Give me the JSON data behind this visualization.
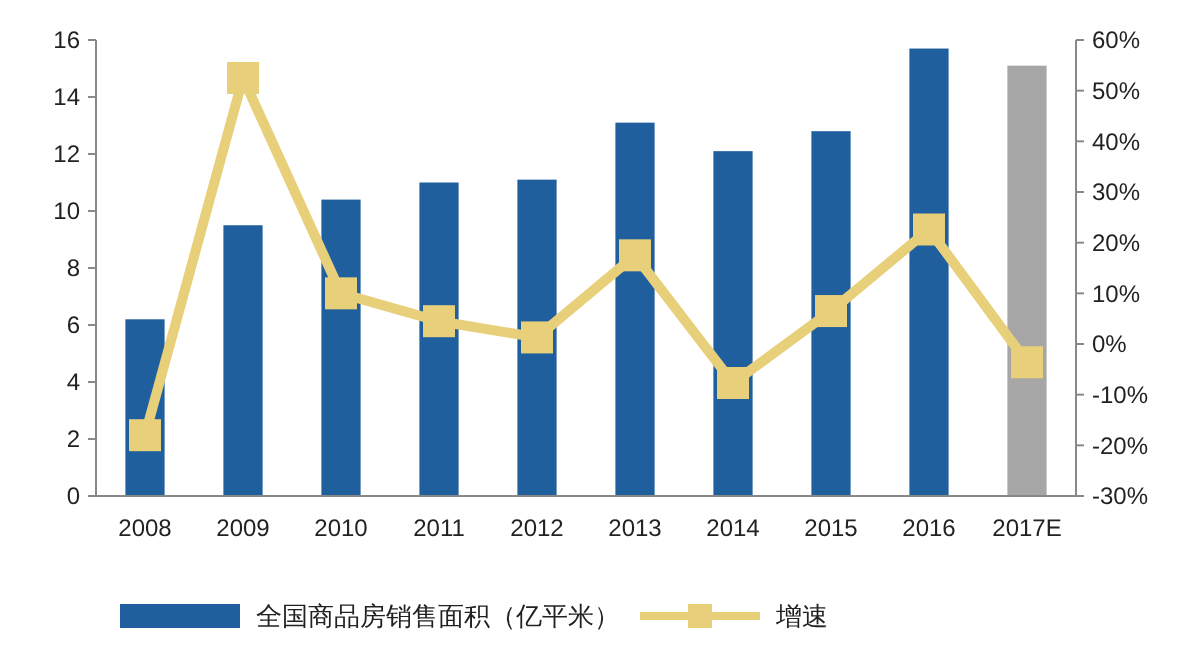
{
  "chart_data": {
    "type": "bar",
    "categories": [
      "2008",
      "2009",
      "2010",
      "2011",
      "2012",
      "2013",
      "2014",
      "2015",
      "2016",
      "2017E"
    ],
    "series": [
      {
        "name": "全国商品房销售面积（亿平米）",
        "color": "#1f5f9e",
        "colors": [
          "#1f5f9e",
          "#1f5f9e",
          "#1f5f9e",
          "#1f5f9e",
          "#1f5f9e",
          "#1f5f9e",
          "#1f5f9e",
          "#1f5f9e",
          "#1f5f9e",
          "#a6a6a6"
        ],
        "values": [
          6.2,
          9.5,
          10.4,
          11.0,
          11.1,
          13.1,
          12.1,
          12.8,
          15.7,
          15.1
        ]
      },
      {
        "name": "增速",
        "type": "line",
        "axis": "y2",
        "color": "#e8cf7a",
        "marker": "square",
        "values": [
          -18,
          52.5,
          10,
          4.5,
          1.3,
          17.5,
          -7.7,
          6.5,
          22.6,
          -3.6
        ]
      }
    ],
    "ylim": [
      0,
      16
    ],
    "yticks": [
      0,
      2,
      4,
      6,
      8,
      10,
      12,
      14,
      16
    ],
    "y2lim": [
      -30,
      60
    ],
    "y2ticks": [
      {
        "value": -30,
        "label": "-30%"
      },
      {
        "value": -20,
        "label": "-20%"
      },
      {
        "value": -10,
        "label": "-10%"
      },
      {
        "value": 0,
        "label": "0%"
      },
      {
        "value": 10,
        "label": "10%"
      },
      {
        "value": 20,
        "label": "20%"
      },
      {
        "value": 30,
        "label": "30%"
      },
      {
        "value": 40,
        "label": "40%"
      },
      {
        "value": 50,
        "label": "50%"
      },
      {
        "value": 60,
        "label": "60%"
      }
    ],
    "grid": false,
    "legend": "bottom"
  }
}
